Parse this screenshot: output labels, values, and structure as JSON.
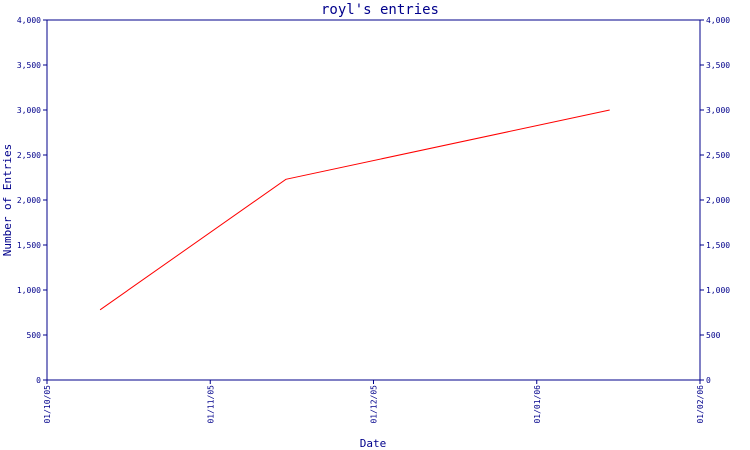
{
  "chart_data": {
    "type": "line",
    "title": "royl's entries",
    "xlabel": "Date",
    "ylabel": "Number of Entries",
    "x_ticks": [
      "01/10/05",
      "01/11/05",
      "01/12/05",
      "01/01/06",
      "01/02/06"
    ],
    "y_ticks": [
      "0",
      "500",
      "1,000",
      "1,500",
      "2,000",
      "2,500",
      "3,000",
      "3,500",
      "4,000"
    ],
    "ylim": [
      0,
      4000
    ],
    "xlim": [
      "2005-10-01",
      "2006-02-01"
    ],
    "x": [
      "2005-10-11",
      "2005-11-15",
      "2006-01-15"
    ],
    "values": [
      780,
      2230,
      3000
    ],
    "series_color": "#ff0000",
    "axis_color": "#00008b",
    "grid": false,
    "right_axis_mirrored": true
  }
}
